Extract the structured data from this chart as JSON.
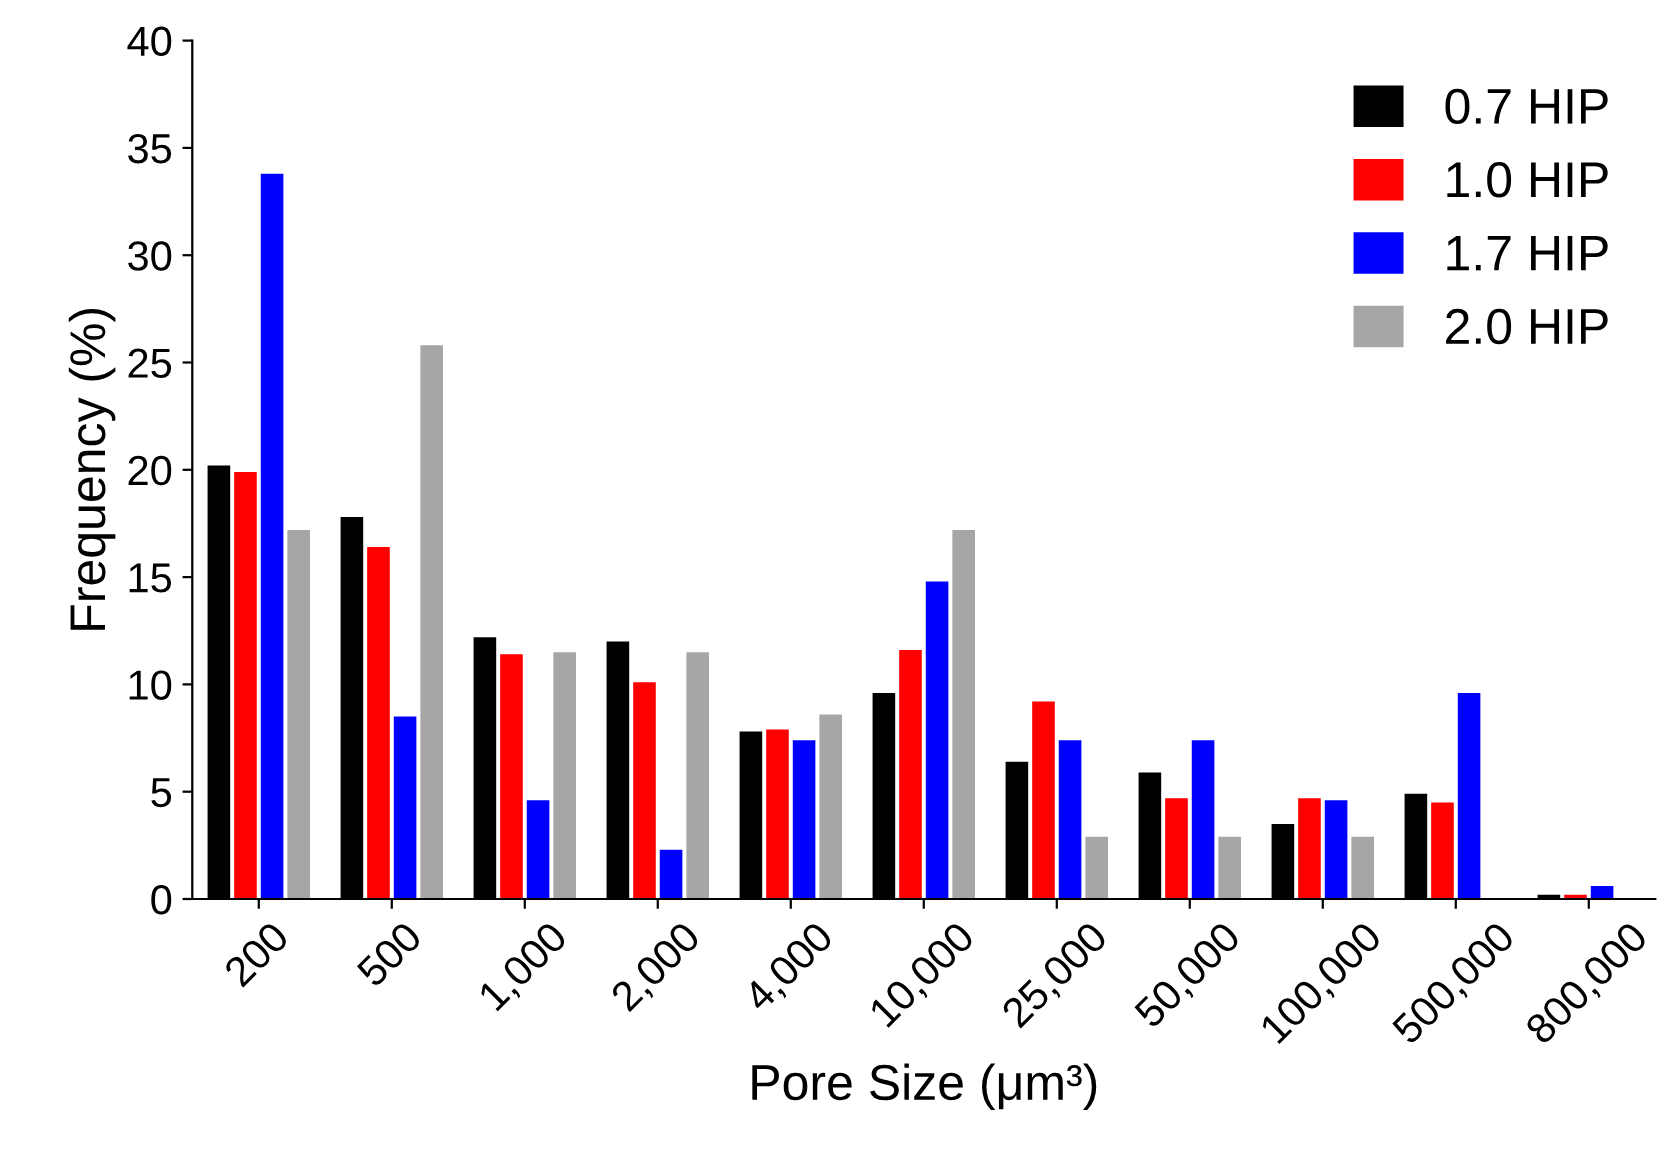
{
  "chart_data": {
    "type": "bar",
    "xlabel": "Pore Size (μm³)",
    "ylabel": "Frequency (%)",
    "categories": [
      "200",
      "500",
      "1,000",
      "2,000",
      "4,000",
      "10,000",
      "25,000",
      "50,000",
      "100,000",
      "500,000",
      "800,000"
    ],
    "series": [
      {
        "name": "0.7 HIP",
        "color": "#000000",
        "values": [
          20.2,
          17.8,
          12.2,
          12.0,
          7.8,
          9.6,
          6.4,
          5.9,
          3.5,
          4.9,
          0.2
        ]
      },
      {
        "name": "1.0 HIP",
        "color": "#ff0000",
        "values": [
          19.9,
          16.4,
          11.4,
          10.1,
          7.9,
          11.6,
          9.2,
          4.7,
          4.7,
          4.5,
          0.2
        ]
      },
      {
        "name": "1.7 HIP",
        "color": "#0000ff",
        "values": [
          33.8,
          8.5,
          4.6,
          2.3,
          7.4,
          14.8,
          7.4,
          7.4,
          4.6,
          9.6,
          0.6
        ]
      },
      {
        "name": "2.0 HIP",
        "color": "#a6a6a6",
        "values": [
          17.2,
          25.8,
          11.5,
          11.5,
          8.6,
          17.2,
          2.9,
          2.9,
          2.9,
          0,
          0
        ]
      }
    ],
    "ylim": [
      0,
      40
    ],
    "yticks": [
      0,
      5,
      10,
      15,
      20,
      25,
      30,
      35,
      40
    ],
    "grid": false,
    "legend": "top right"
  }
}
